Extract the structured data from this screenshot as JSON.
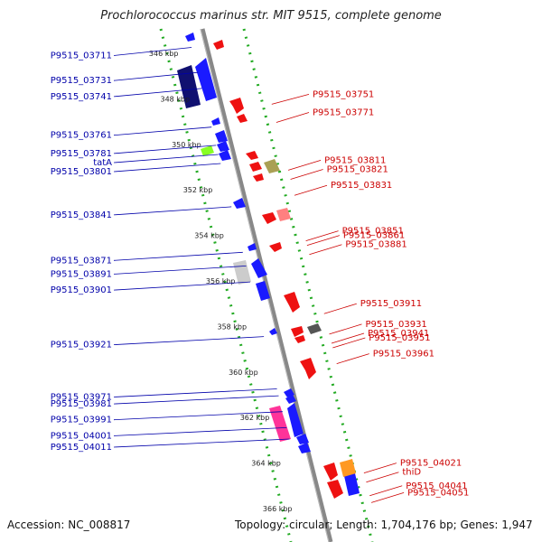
{
  "title": "Prochlorococcus marinus str. MIT 9515, complete genome",
  "footer": {
    "accession": "Accession: NC_008817",
    "summary": "Topology: circular; Length: 1,704,176 bp; Genes: 1,947"
  },
  "colors": {
    "backbone": "#888888",
    "forward_label": "#cc0000",
    "reverse_label": "#0000aa",
    "scale_dots": "#228822"
  },
  "scale_ticks": [
    {
      "label": "346 kbp",
      "kbp": 346
    },
    {
      "label": "348 kbp",
      "kbp": 348
    },
    {
      "label": "350 kbp",
      "kbp": 350
    },
    {
      "label": "352 kbp",
      "kbp": 352
    },
    {
      "label": "354 kbp",
      "kbp": 354
    },
    {
      "label": "356 kbp",
      "kbp": 356
    },
    {
      "label": "358 kbp",
      "kbp": 358
    },
    {
      "label": "360 kbp",
      "kbp": 360
    },
    {
      "label": "362 kbp",
      "kbp": 362
    },
    {
      "label": "364 kbp",
      "kbp": 364
    },
    {
      "label": "366 kbp",
      "kbp": 366
    }
  ],
  "reverse_genes": [
    {
      "label": "P9515_03711",
      "kbp": 346.1
    },
    {
      "label": "P9515_03731",
      "kbp": 347.2
    },
    {
      "label": "P9515_03741",
      "kbp": 347.9
    },
    {
      "label": "P9515_03761",
      "kbp": 349.6
    },
    {
      "label": "P9515_03781",
      "kbp": 350.4
    },
    {
      "label": "tatA",
      "kbp": 350.8
    },
    {
      "label": "P9515_03801",
      "kbp": 351.2
    },
    {
      "label": "P9515_03841",
      "kbp": 353.1
    },
    {
      "label": "P9515_03871",
      "kbp": 355.1
    },
    {
      "label": "P9515_03891",
      "kbp": 355.7
    },
    {
      "label": "P9515_03901",
      "kbp": 356.4
    },
    {
      "label": "P9515_03921",
      "kbp": 358.8
    },
    {
      "label": "P9515_03971",
      "kbp": 361.1
    },
    {
      "label": "P9515_03981",
      "kbp": 361.4
    },
    {
      "label": "P9515_03991",
      "kbp": 362.1
    },
    {
      "label": "P9515_04001",
      "kbp": 362.8
    },
    {
      "label": "P9515_04011",
      "kbp": 363.3
    }
  ],
  "forward_genes": [
    {
      "label": "P9515_03751",
      "kbp": 347.8
    },
    {
      "label": "P9515_03771",
      "kbp": 348.6
    },
    {
      "label": "P9515_03811",
      "kbp": 350.7
    },
    {
      "label": "P9515_03821",
      "kbp": 351.1
    },
    {
      "label": "P9515_03831",
      "kbp": 351.8
    },
    {
      "label": "P9515_03851",
      "kbp": 353.8
    },
    {
      "label": "P9515_03861",
      "kbp": 354.0
    },
    {
      "label": "P9515_03881",
      "kbp": 354.4
    },
    {
      "label": "P9515_03911",
      "kbp": 357.0
    },
    {
      "label": "P9515_03931",
      "kbp": 357.9
    },
    {
      "label": "P9515_03941",
      "kbp": 358.3
    },
    {
      "label": "P9515_03951",
      "kbp": 358.5
    },
    {
      "label": "P9515_03961",
      "kbp": 359.2
    },
    {
      "label": "P9515_04021",
      "kbp": 364.0
    },
    {
      "label": "thiD",
      "kbp": 364.4
    },
    {
      "label": "P9515_04041",
      "kbp": 365.0
    },
    {
      "label": "P9515_04051",
      "kbp": 365.3
    }
  ]
}
